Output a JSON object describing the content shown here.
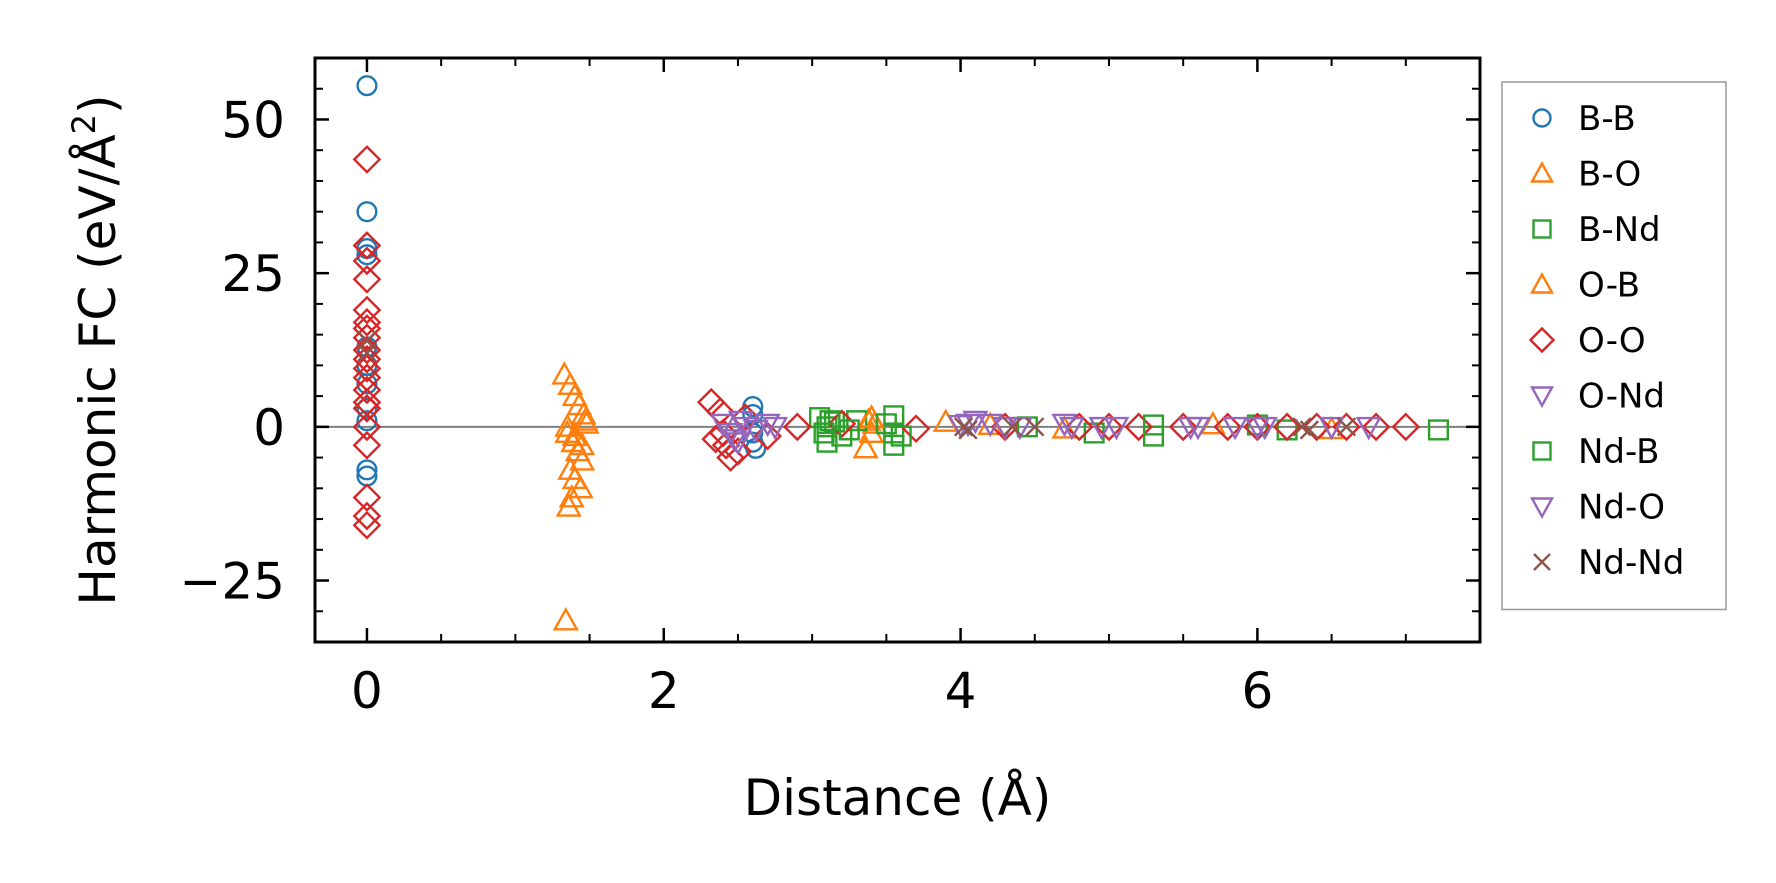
{
  "chart_data": {
    "type": "scatter",
    "title": "",
    "xlabel": "Distance (Å)",
    "ylabel_main": "Harmonic FC (eV/Å",
    "ylabel_sup": "2",
    "ylabel_close": ")",
    "xlim": [
      -0.35,
      7.5
    ],
    "ylim": [
      -35,
      60
    ],
    "xticks": [
      0,
      2,
      4,
      6
    ],
    "xtick_labels": [
      "0",
      "2",
      "4",
      "6"
    ],
    "yticks": [
      -25,
      0,
      25,
      50
    ],
    "ytick_labels": [
      "−25",
      "0",
      "25",
      "50"
    ],
    "zero_line": true,
    "legend_position": "outside right",
    "series": [
      {
        "name": "B-B",
        "marker": "circle",
        "color": "#1f77b4",
        "points": [
          [
            0,
            55.5
          ],
          [
            0,
            35
          ],
          [
            0,
            29
          ],
          [
            0,
            28
          ],
          [
            0,
            13
          ],
          [
            0,
            10
          ],
          [
            0,
            7
          ],
          [
            0,
            3
          ],
          [
            0,
            1
          ],
          [
            0,
            -7
          ],
          [
            0,
            -8
          ],
          [
            2.6,
            3.3
          ],
          [
            2.6,
            2
          ],
          [
            2.6,
            -1
          ],
          [
            2.6,
            -2.5
          ],
          [
            2.62,
            -3.5
          ]
        ]
      },
      {
        "name": "B-O",
        "marker": "triangle-up",
        "color": "#ff7f0e",
        "points": [
          [
            1.33,
            8.5
          ],
          [
            1.37,
            6.8
          ],
          [
            1.4,
            5
          ],
          [
            1.43,
            3.5
          ],
          [
            1.46,
            2
          ],
          [
            1.48,
            0.5
          ],
          [
            1.35,
            -1
          ],
          [
            1.39,
            -2.5
          ],
          [
            1.42,
            -4
          ],
          [
            1.45,
            -5.5
          ],
          [
            1.37,
            -7
          ],
          [
            1.4,
            -8.5
          ],
          [
            1.44,
            -10
          ],
          [
            1.38,
            -11.5
          ],
          [
            1.36,
            -13
          ],
          [
            1.34,
            -31.5
          ],
          [
            3.38,
            1
          ],
          [
            3.4,
            -1
          ],
          [
            3.36,
            -3.5
          ],
          [
            3.42,
            0.5
          ]
        ]
      },
      {
        "name": "B-Nd",
        "marker": "square",
        "color": "#2ca02c",
        "points": [
          [
            3.05,
            1.5
          ],
          [
            3.1,
            0
          ],
          [
            3.1,
            -2.5
          ],
          [
            3.15,
            0.8
          ],
          [
            3.2,
            -1.5
          ],
          [
            3.3,
            1
          ],
          [
            3.55,
            1.8
          ],
          [
            3.55,
            -1
          ],
          [
            3.55,
            -3
          ],
          [
            4.9,
            -1
          ],
          [
            5.3,
            -1.5
          ],
          [
            6.0,
            0.3
          ],
          [
            6.2,
            -0.5
          ],
          [
            7.22,
            -0.5
          ]
        ]
      },
      {
        "name": "O-B",
        "marker": "triangle-up",
        "color": "#ff7f0e",
        "points": [
          [
            1.35,
            0
          ],
          [
            1.4,
            -1.5
          ],
          [
            1.45,
            -3
          ],
          [
            1.47,
            1
          ],
          [
            3.4,
            1.5
          ],
          [
            3.9,
            0.8
          ],
          [
            4.2,
            0.3
          ],
          [
            4.7,
            -0.3
          ],
          [
            5.7,
            0.4
          ],
          [
            6.5,
            -0.4
          ]
        ]
      },
      {
        "name": "O-O",
        "marker": "diamond",
        "color": "#d62728",
        "points": [
          [
            0,
            43.5
          ],
          [
            0,
            29.5
          ],
          [
            0,
            27
          ],
          [
            0,
            24
          ],
          [
            0,
            19
          ],
          [
            0,
            17
          ],
          [
            0,
            16
          ],
          [
            0,
            14.5
          ],
          [
            0,
            12.5
          ],
          [
            0,
            11
          ],
          [
            0,
            9.5
          ],
          [
            0,
            8
          ],
          [
            0,
            6
          ],
          [
            0,
            4
          ],
          [
            0,
            3
          ],
          [
            0,
            0
          ],
          [
            0,
            -3
          ],
          [
            0,
            -11.5
          ],
          [
            0,
            -14.5
          ],
          [
            0,
            -16
          ],
          [
            2.32,
            4
          ],
          [
            2.38,
            2.5
          ],
          [
            2.4,
            -1
          ],
          [
            2.42,
            -3
          ],
          [
            2.45,
            -5
          ],
          [
            2.5,
            -4
          ],
          [
            2.55,
            1.5
          ],
          [
            2.35,
            -2
          ],
          [
            2.7,
            -1.5
          ],
          [
            2.9,
            0
          ],
          [
            3.2,
            0.5
          ],
          [
            3.7,
            -0.3
          ],
          [
            4.3,
            0
          ],
          [
            4.8,
            0
          ],
          [
            5.0,
            0
          ],
          [
            5.2,
            0
          ],
          [
            5.5,
            0
          ],
          [
            5.8,
            0
          ],
          [
            6.0,
            0
          ],
          [
            6.2,
            0
          ],
          [
            6.4,
            0
          ],
          [
            6.6,
            0
          ],
          [
            6.8,
            0
          ],
          [
            7.0,
            0
          ]
        ]
      },
      {
        "name": "O-Nd",
        "marker": "triangle-down",
        "color": "#9467bd",
        "points": [
          [
            2.4,
            0.5
          ],
          [
            2.45,
            -1
          ],
          [
            2.5,
            -2.5
          ],
          [
            2.55,
            0
          ],
          [
            2.75,
            0
          ],
          [
            4.0,
            0.3
          ],
          [
            4.1,
            1
          ],
          [
            4.2,
            0.5
          ],
          [
            4.3,
            0
          ],
          [
            4.7,
            0.5
          ],
          [
            4.95,
            0
          ],
          [
            5.6,
            0
          ],
          [
            6.0,
            0
          ],
          [
            6.5,
            0
          ]
        ]
      },
      {
        "name": "Nd-B",
        "marker": "square",
        "color": "#2ca02c",
        "points": [
          [
            3.08,
            -1
          ],
          [
            3.12,
            1
          ],
          [
            3.25,
            -0.5
          ],
          [
            3.5,
            0.5
          ],
          [
            3.6,
            -1.5
          ],
          [
            4.45,
            0
          ],
          [
            5.3,
            0.3
          ]
        ]
      },
      {
        "name": "Nd-O",
        "marker": "triangle-down",
        "color": "#9467bd",
        "points": [
          [
            2.48,
            -2
          ],
          [
            2.52,
            1
          ],
          [
            2.62,
            -0.5
          ],
          [
            2.7,
            0.5
          ],
          [
            4.05,
            0.5
          ],
          [
            4.4,
            0
          ],
          [
            4.75,
            0
          ],
          [
            5.05,
            0
          ],
          [
            5.55,
            0
          ],
          [
            5.85,
            0
          ],
          [
            6.05,
            0
          ],
          [
            6.75,
            0
          ]
        ]
      },
      {
        "name": "Nd-Nd",
        "marker": "x",
        "color": "#8c564b",
        "points": [
          [
            0,
            14
          ],
          [
            0,
            12
          ],
          [
            4.02,
            0
          ],
          [
            4.05,
            -0.5
          ],
          [
            4.35,
            0
          ],
          [
            4.5,
            0
          ],
          [
            6.3,
            0
          ],
          [
            6.35,
            -0.5
          ],
          [
            6.6,
            0
          ]
        ]
      }
    ]
  }
}
